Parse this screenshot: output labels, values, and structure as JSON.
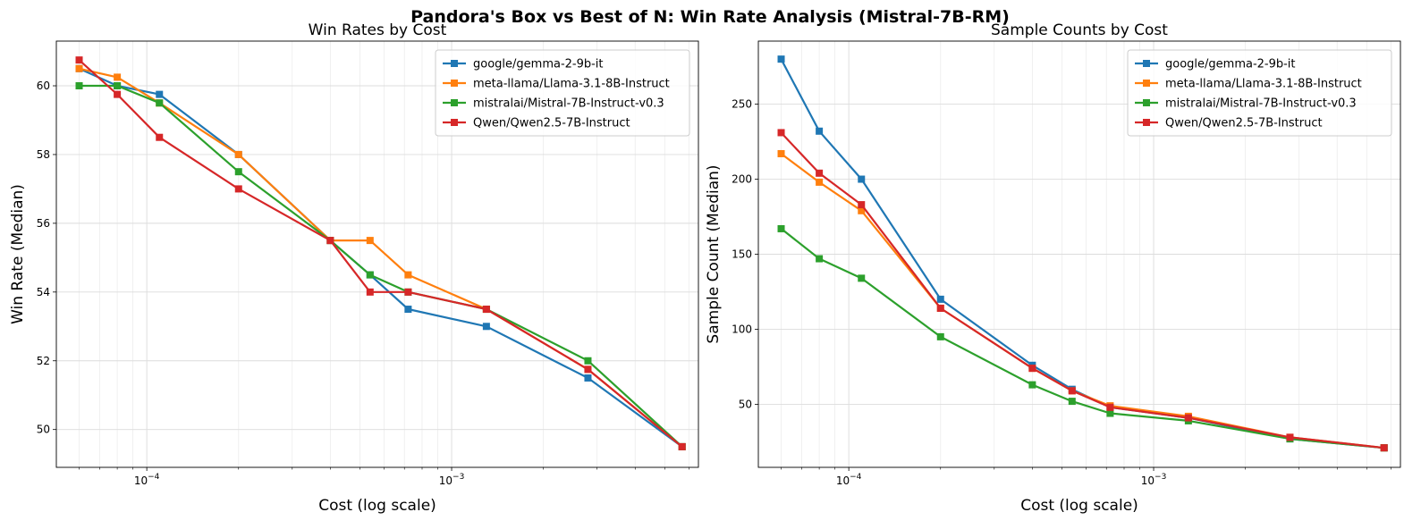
{
  "figure_title": "Pandora's Box vs Best of N: Win Rate Analysis (Mistral-7B-RM)",
  "chart_data": [
    {
      "type": "line",
      "id": "win",
      "title": "Win Rates by Cost",
      "xlabel": "Cost (log scale)",
      "ylabel": "Win Rate (Median)",
      "xscale": "log",
      "xlim": [
        5.05e-05,
        0.00645
      ],
      "ylim": [
        48.9,
        61.3
      ],
      "xticks": [
        {
          "value": 0.0001,
          "base": "10",
          "exp": "−4"
        },
        {
          "value": 0.001,
          "base": "10",
          "exp": "−3"
        }
      ],
      "yticks": [
        50,
        52,
        54,
        56,
        58,
        60
      ],
      "grid": true,
      "legend_position": "top-right",
      "x": [
        6e-05,
        8e-05,
        0.00011,
        0.0002,
        0.0004,
        0.00054,
        0.00072,
        0.0013,
        0.0028,
        0.0057
      ],
      "series": [
        {
          "name": "google/gemma-2-9b-it",
          "color": "#1f77b4",
          "values": [
            60.5,
            60.0,
            59.75,
            58.0,
            55.5,
            54.5,
            53.5,
            53.0,
            51.5,
            49.5
          ]
        },
        {
          "name": "meta-llama/Llama-3.1-8B-Instruct",
          "color": "#ff7f0e",
          "values": [
            60.5,
            60.25,
            59.5,
            58.0,
            55.5,
            55.5,
            54.5,
            53.5,
            51.75,
            49.5
          ]
        },
        {
          "name": "mistralai/Mistral-7B-Instruct-v0.3",
          "color": "#2ca02c",
          "values": [
            60.0,
            60.0,
            59.5,
            57.5,
            55.5,
            54.5,
            54.0,
            53.5,
            52.0,
            49.5
          ]
        },
        {
          "name": "Qwen/Qwen2.5-7B-Instruct",
          "color": "#d62728",
          "values": [
            60.75,
            59.75,
            58.5,
            57.0,
            55.5,
            54.0,
            54.0,
            53.5,
            51.75,
            49.5
          ]
        }
      ]
    },
    {
      "type": "line",
      "id": "samp",
      "title": "Sample Counts by Cost",
      "xlabel": "Cost (log scale)",
      "ylabel": "Sample Count (Median)",
      "xscale": "log",
      "xlim": [
        5.05e-05,
        0.00645
      ],
      "ylim": [
        8,
        292
      ],
      "xticks": [
        {
          "value": 0.0001,
          "base": "10",
          "exp": "−4"
        },
        {
          "value": 0.001,
          "base": "10",
          "exp": "−3"
        }
      ],
      "yticks": [
        50,
        100,
        150,
        200,
        250
      ],
      "grid": true,
      "legend_position": "top-right",
      "x": [
        6e-05,
        8e-05,
        0.00011,
        0.0002,
        0.0004,
        0.00054,
        0.00072,
        0.0013,
        0.0028,
        0.0057
      ],
      "series": [
        {
          "name": "google/gemma-2-9b-it",
          "color": "#1f77b4",
          "values": [
            280,
            232,
            200,
            120,
            76,
            60,
            48,
            41,
            27,
            21
          ]
        },
        {
          "name": "meta-llama/Llama-3.1-8B-Instruct",
          "color": "#ff7f0e",
          "values": [
            217,
            198,
            179,
            114,
            74,
            59,
            49,
            42,
            28,
            21
          ]
        },
        {
          "name": "mistralai/Mistral-7B-Instruct-v0.3",
          "color": "#2ca02c",
          "values": [
            167,
            147,
            134,
            95,
            63,
            52,
            44,
            39,
            27,
            21
          ]
        },
        {
          "name": "Qwen/Qwen2.5-7B-Instruct",
          "color": "#d62728",
          "values": [
            231,
            204,
            183,
            114,
            74,
            59,
            48,
            41,
            28,
            21
          ]
        }
      ]
    }
  ]
}
